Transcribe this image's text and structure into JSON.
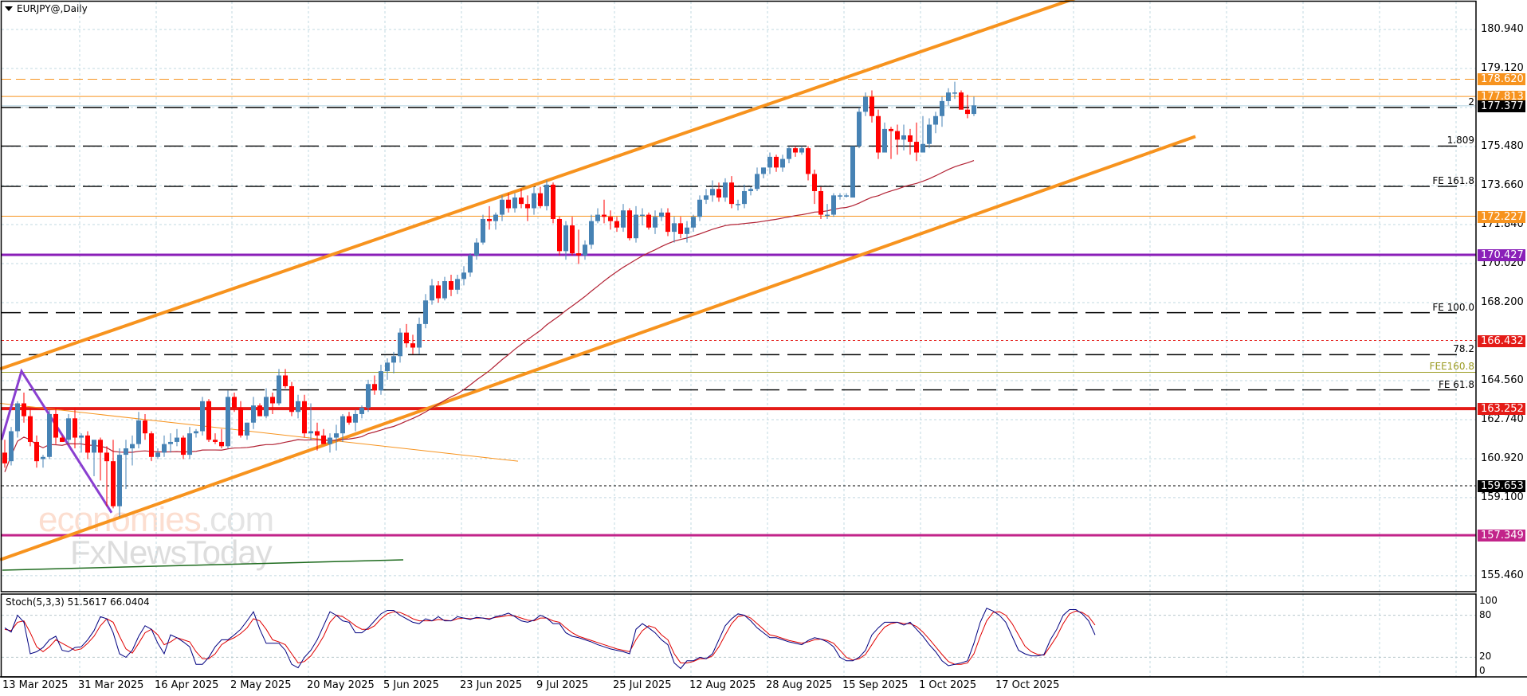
{
  "window": {
    "title": "EURJPY@,Daily"
  },
  "colors": {
    "bull": "#4682b4",
    "bear": "#ff0000",
    "grid": "#c0d8e0",
    "channel": "#f7931e",
    "level_orange": "#f7931e",
    "level_purple": "#8a1fb8",
    "level_red": "#e41b17",
    "level_magenta": "#c2248a",
    "level_black": "#000000",
    "ma": "#b22234",
    "stoch_main": "#000080",
    "stoch_signal": "#e00000"
  },
  "price_axis": {
    "ticks": [
      "180.940",
      "179.120",
      "177.300",
      "175.480",
      "173.660",
      "171.840",
      "170.020",
      "168.200",
      "164.560",
      "162.740",
      "160.920",
      "159.100",
      "155.460"
    ],
    "tick_values": [
      180.94,
      179.12,
      177.3,
      175.48,
      173.66,
      171.84,
      170.02,
      168.2,
      164.56,
      162.74,
      160.92,
      159.1,
      155.46
    ]
  },
  "price_tags": [
    {
      "label": "178.620",
      "value": 178.62,
      "color": "#f7931e"
    },
    {
      "label": "177.813",
      "value": 177.813,
      "color": "#f7931e"
    },
    {
      "label": "177.377",
      "value": 177.377,
      "color": "#000000"
    },
    {
      "label": "172.227",
      "value": 172.227,
      "color": "#f7931e"
    },
    {
      "label": "170.427",
      "value": 170.427,
      "color": "#8a1fb8"
    },
    {
      "label": "166.432",
      "value": 166.432,
      "color": "#e41b17"
    },
    {
      "label": "163.252",
      "value": 163.252,
      "color": "#e41b17"
    },
    {
      "label": "159.653",
      "value": 159.653,
      "color": "#000000"
    },
    {
      "label": "157.349",
      "value": 157.349,
      "color": "#c2248a"
    }
  ],
  "fib_levels": [
    {
      "label": "2",
      "value": 177.3
    },
    {
      "label": "1.809",
      "value": 175.5
    },
    {
      "label": "FE 161.8",
      "value": 173.62
    },
    {
      "label": "FE 100.0",
      "value": 167.73
    },
    {
      "label": "78.2",
      "value": 165.77
    },
    {
      "label": "FE 61.8",
      "value": 164.13
    }
  ],
  "olive_level": {
    "label": "FEE160.8",
    "value": 164.95
  },
  "stoch": {
    "label": "Stoch(5,3,3) 51.5617 66.0404",
    "ticks": [
      "100",
      "80",
      "20",
      "0"
    ]
  },
  "x_axis": {
    "dates": [
      "13 Mar 2025",
      "31 Mar 2025",
      "16 Apr 2025",
      "2 May 2025",
      "20 May 2025",
      "5 Jun 2025",
      "23 Jun 2025",
      "9 Jul 2025",
      "25 Jul 2025",
      "12 Aug 2025",
      "28 Aug 2025",
      "15 Sep 2025",
      "1 Oct 2025",
      "17 Oct 2025"
    ]
  },
  "watermark": {
    "part1": "economies",
    "part2": ".com",
    "line2": "FxNewsToday"
  },
  "chart_data": {
    "type": "candlestick",
    "title": "EURJPY@,Daily",
    "xlabel": "",
    "ylabel": "",
    "ylim": [
      154.8,
      182.3
    ],
    "x_tick_labels": [
      "13 Mar 2025",
      "31 Mar 2025",
      "16 Apr 2025",
      "2 May 2025",
      "20 May 2025",
      "5 Jun 2025",
      "23 Jun 2025",
      "9 Jul 2025",
      "25 Jul 2025",
      "12 Aug 2025",
      "28 Aug 2025",
      "15 Sep 2025",
      "1 Oct 2025",
      "17 Oct 2025"
    ],
    "horizontal_levels": [
      178.62,
      177.813,
      177.377,
      172.227,
      170.427,
      166.432,
      163.252,
      159.653,
      157.349
    ],
    "indicators": [
      "Stoch(5,3,3) main 51.5617",
      "signal 66.0404",
      "Moving average (red)"
    ],
    "ohlc": [
      [
        161.2,
        161.8,
        160.5,
        160.7
      ],
      [
        160.8,
        162.4,
        160.6,
        162.2
      ],
      [
        162.2,
        163.6,
        161.9,
        163.5
      ],
      [
        163.5,
        164.0,
        162.6,
        162.9
      ],
      [
        162.9,
        163.3,
        161.5,
        161.7
      ],
      [
        161.7,
        162.0,
        160.5,
        160.8
      ],
      [
        160.9,
        161.1,
        160.5,
        161.0
      ],
      [
        161.0,
        163.2,
        160.9,
        163.0
      ],
      [
        163.0,
        163.3,
        161.6,
        161.9
      ],
      [
        161.9,
        162.0,
        161.7,
        161.7
      ],
      [
        161.8,
        163.0,
        161.6,
        162.8
      ],
      [
        162.8,
        163.3,
        161.4,
        161.9
      ],
      [
        161.9,
        162.1,
        161.2,
        162.0
      ],
      [
        162.0,
        162.2,
        160.9,
        161.2
      ],
      [
        161.2,
        161.7,
        160.1,
        161.8
      ],
      [
        161.8,
        161.9,
        159.9,
        161.2
      ],
      [
        161.2,
        161.5,
        158.7,
        160.8
      ],
      [
        160.8,
        161.8,
        158.6,
        158.7
      ],
      [
        158.7,
        161.4,
        158.2,
        161.1
      ],
      [
        161.1,
        161.8,
        159.5,
        161.4
      ],
      [
        161.4,
        162.0,
        160.6,
        161.6
      ],
      [
        161.6,
        163.1,
        161.4,
        162.7
      ],
      [
        162.7,
        163.0,
        161.8,
        162.1
      ],
      [
        162.1,
        162.2,
        160.8,
        161.0
      ],
      [
        161.0,
        161.4,
        160.9,
        161.2
      ],
      [
        161.2,
        162.0,
        161.0,
        161.6
      ],
      [
        161.6,
        162.1,
        161.2,
        161.7
      ],
      [
        161.7,
        162.3,
        161.5,
        161.9
      ],
      [
        161.9,
        162.0,
        160.9,
        161.1
      ],
      [
        161.1,
        162.4,
        160.9,
        162.1
      ],
      [
        162.1,
        162.3,
        161.9,
        162.2
      ],
      [
        162.2,
        163.8,
        162.0,
        163.6
      ],
      [
        163.6,
        163.7,
        161.7,
        161.8
      ],
      [
        161.8,
        162.1,
        161.6,
        161.7
      ],
      [
        161.7,
        162.3,
        161.4,
        161.5
      ],
      [
        161.5,
        164.1,
        161.4,
        163.8
      ],
      [
        163.8,
        164.0,
        163.1,
        163.3
      ],
      [
        163.3,
        163.6,
        161.9,
        162.0
      ],
      [
        162.0,
        162.6,
        161.8,
        162.6
      ],
      [
        162.6,
        163.8,
        162.3,
        163.4
      ],
      [
        163.4,
        163.5,
        162.9,
        162.9
      ],
      [
        162.9,
        164.2,
        162.8,
        163.8
      ],
      [
        163.8,
        164.0,
        163.0,
        163.5
      ],
      [
        163.5,
        165.1,
        163.4,
        164.8
      ],
      [
        164.8,
        165.1,
        164.2,
        164.3
      ],
      [
        164.3,
        164.5,
        162.9,
        163.1
      ],
      [
        163.1,
        163.9,
        162.8,
        163.6
      ],
      [
        163.6,
        163.9,
        161.9,
        162.1
      ],
      [
        162.1,
        163.5,
        161.8,
        162.2
      ],
      [
        162.2,
        162.6,
        161.3,
        162.0
      ],
      [
        162.0,
        162.3,
        161.6,
        161.6
      ],
      [
        161.6,
        162.1,
        161.2,
        161.9
      ],
      [
        161.9,
        162.5,
        161.3,
        162.1
      ],
      [
        162.1,
        163.0,
        161.7,
        162.9
      ],
      [
        162.9,
        163.1,
        162.5,
        162.6
      ],
      [
        162.6,
        163.2,
        162.2,
        163.0
      ],
      [
        163.0,
        163.4,
        162.8,
        163.3
      ],
      [
        163.3,
        164.6,
        163.1,
        164.4
      ],
      [
        164.4,
        164.8,
        163.9,
        164.1
      ],
      [
        164.1,
        165.3,
        163.9,
        165.0
      ],
      [
        165.0,
        165.6,
        164.6,
        165.4
      ],
      [
        165.4,
        165.9,
        164.9,
        165.7
      ],
      [
        165.7,
        167.0,
        165.4,
        166.8
      ],
      [
        166.8,
        167.2,
        166.1,
        166.3
      ],
      [
        166.3,
        166.7,
        165.8,
        166.1
      ],
      [
        166.1,
        167.5,
        165.8,
        167.2
      ],
      [
        167.2,
        168.6,
        167.0,
        168.3
      ],
      [
        168.3,
        169.3,
        168.1,
        169.0
      ],
      [
        169.0,
        169.2,
        168.2,
        168.4
      ],
      [
        168.4,
        169.4,
        168.3,
        169.2
      ],
      [
        169.2,
        169.5,
        168.5,
        168.8
      ],
      [
        168.8,
        169.5,
        168.6,
        169.3
      ],
      [
        169.3,
        169.9,
        169.0,
        169.6
      ],
      [
        169.6,
        170.5,
        169.4,
        170.4
      ],
      [
        170.4,
        171.2,
        170.2,
        171.0
      ],
      [
        171.0,
        172.3,
        170.9,
        172.1
      ],
      [
        172.1,
        172.7,
        171.6,
        172.0
      ],
      [
        172.0,
        172.4,
        171.6,
        172.3
      ],
      [
        172.3,
        173.2,
        172.0,
        173.0
      ],
      [
        173.0,
        173.3,
        172.4,
        172.6
      ],
      [
        172.6,
        173.3,
        172.4,
        173.1
      ],
      [
        173.1,
        173.5,
        172.6,
        172.8
      ],
      [
        172.8,
        173.2,
        172.0,
        172.6
      ],
      [
        172.6,
        173.6,
        172.3,
        173.3
      ],
      [
        173.3,
        173.6,
        172.6,
        172.7
      ],
      [
        172.7,
        173.9,
        172.5,
        173.7
      ],
      [
        173.7,
        173.8,
        171.9,
        172.1
      ],
      [
        172.1,
        172.2,
        170.4,
        170.6
      ],
      [
        170.6,
        172.0,
        170.2,
        171.8
      ],
      [
        171.8,
        172.2,
        170.4,
        170.5
      ],
      [
        170.5,
        171.6,
        170.0,
        170.4
      ],
      [
        170.4,
        171.1,
        170.2,
        170.9
      ],
      [
        170.9,
        172.3,
        170.7,
        172.0
      ],
      [
        172.0,
        172.6,
        171.9,
        172.3
      ],
      [
        172.3,
        173.0,
        171.9,
        172.2
      ],
      [
        172.2,
        172.5,
        171.6,
        172.0
      ],
      [
        172.0,
        172.2,
        171.5,
        171.7
      ],
      [
        171.7,
        172.8,
        171.5,
        172.5
      ],
      [
        172.5,
        172.6,
        171.1,
        171.2
      ],
      [
        171.2,
        172.7,
        171.0,
        172.3
      ],
      [
        172.3,
        172.6,
        171.8,
        172.3
      ],
      [
        172.3,
        172.4,
        171.6,
        171.7
      ],
      [
        171.7,
        172.5,
        171.4,
        172.2
      ],
      [
        172.2,
        172.6,
        172.0,
        172.4
      ],
      [
        172.4,
        172.6,
        171.3,
        171.5
      ],
      [
        171.5,
        172.2,
        171.0,
        171.9
      ],
      [
        171.9,
        172.2,
        171.2,
        171.4
      ],
      [
        171.4,
        172.0,
        171.0,
        171.7
      ],
      [
        171.7,
        172.3,
        171.5,
        172.2
      ],
      [
        172.2,
        173.2,
        172.0,
        173.0
      ],
      [
        173.0,
        173.5,
        172.8,
        173.2
      ],
      [
        173.2,
        173.9,
        172.9,
        173.5
      ],
      [
        173.5,
        173.8,
        172.9,
        173.1
      ],
      [
        173.1,
        174.0,
        172.9,
        173.8
      ],
      [
        173.8,
        174.1,
        172.6,
        172.8
      ],
      [
        172.8,
        173.0,
        172.5,
        172.8
      ],
      [
        172.8,
        173.7,
        172.6,
        173.4
      ],
      [
        173.4,
        173.6,
        173.2,
        173.5
      ],
      [
        173.5,
        174.5,
        173.4,
        174.2
      ],
      [
        174.2,
        174.5,
        174.0,
        174.5
      ],
      [
        174.5,
        175.2,
        174.2,
        175.0
      ],
      [
        175.0,
        175.1,
        174.3,
        174.5
      ],
      [
        174.5,
        175.1,
        174.3,
        174.9
      ],
      [
        174.9,
        175.5,
        174.7,
        175.4
      ],
      [
        175.4,
        175.5,
        175.0,
        175.2
      ],
      [
        175.2,
        175.5,
        175.1,
        175.4
      ],
      [
        175.4,
        175.5,
        173.9,
        174.2
      ],
      [
        174.2,
        174.4,
        172.8,
        173.4
      ],
      [
        173.4,
        173.6,
        172.1,
        172.3
      ],
      [
        172.3,
        172.8,
        172.1,
        172.3
      ],
      [
        172.3,
        173.3,
        172.2,
        173.2
      ],
      [
        173.2,
        173.3,
        173.0,
        173.2
      ],
      [
        173.2,
        173.3,
        173.1,
        173.2
      ],
      [
        173.1,
        175.5,
        174.6,
        175.5
      ],
      [
        175.5,
        177.3,
        175.4,
        177.1
      ],
      [
        177.1,
        178.0,
        176.9,
        177.8
      ],
      [
        177.8,
        178.1,
        176.6,
        176.9
      ],
      [
        176.9,
        177.2,
        174.9,
        175.2
      ],
      [
        175.2,
        176.6,
        175.6,
        176.3
      ],
      [
        176.3,
        176.4,
        174.9,
        176.2
      ],
      [
        176.2,
        176.5,
        175.1,
        175.8
      ],
      [
        175.8,
        176.5,
        175.3,
        176.0
      ],
      [
        176.0,
        176.3,
        175.1,
        175.7
      ],
      [
        175.7,
        176.6,
        174.8,
        175.2
      ],
      [
        175.2,
        176.9,
        175.3,
        175.6
      ],
      [
        175.6,
        176.8,
        175.4,
        176.5
      ],
      [
        176.5,
        177.1,
        176.1,
        176.9
      ],
      [
        176.9,
        177.8,
        176.4,
        177.6
      ],
      [
        177.6,
        178.2,
        177.4,
        178.0
      ],
      [
        178.0,
        178.5,
        177.7,
        178.0
      ],
      [
        178.0,
        178.1,
        177.2,
        177.2
      ],
      [
        177.2,
        177.9,
        176.8,
        177.0
      ],
      [
        177.0,
        177.8,
        176.9,
        177.4
      ]
    ],
    "stoch_main": [
      62,
      56,
      80,
      70,
      25,
      28,
      34,
      45,
      50,
      30,
      28,
      34,
      35,
      45,
      58,
      78,
      75,
      55,
      25,
      20,
      30,
      50,
      65,
      60,
      40,
      25,
      52,
      48,
      42,
      35,
      10,
      10,
      20,
      35,
      45,
      45,
      52,
      60,
      72,
      85,
      60,
      40,
      40,
      40,
      30,
      10,
      5,
      20,
      30,
      45,
      65,
      85,
      80,
      72,
      70,
      55,
      55,
      62,
      72,
      82,
      87,
      87,
      80,
      75,
      70,
      68,
      75,
      72,
      78,
      72,
      72,
      78,
      76,
      74,
      77,
      76,
      74,
      78,
      80,
      83,
      78,
      72,
      70,
      73,
      80,
      76,
      68,
      68,
      55,
      50,
      48,
      45,
      42,
      38,
      35,
      32,
      30,
      28,
      25,
      60,
      68,
      62,
      55,
      45,
      38,
      12,
      4,
      15,
      15,
      20,
      18,
      25,
      45,
      65,
      75,
      82,
      80,
      72,
      62,
      55,
      48,
      48,
      45,
      42,
      40,
      38,
      44,
      48,
      46,
      42,
      35,
      20,
      15,
      15,
      20,
      30,
      52,
      62,
      70,
      70,
      70,
      66,
      70,
      60,
      50,
      38,
      28,
      15,
      8,
      10,
      12,
      15,
      40,
      70,
      90,
      86,
      80,
      70,
      50,
      30,
      25,
      22,
      22,
      24,
      45,
      60,
      80,
      88,
      88,
      82,
      72,
      52
    ],
    "stoch_signal": [
      60,
      58,
      70,
      72,
      55,
      35,
      28,
      35,
      45,
      40,
      35,
      30,
      32,
      40,
      50,
      65,
      75,
      70,
      50,
      32,
      26,
      40,
      55,
      60,
      52,
      38,
      42,
      48,
      45,
      42,
      28,
      18,
      18,
      25,
      38,
      44,
      48,
      54,
      62,
      75,
      72,
      60,
      45,
      42,
      38,
      25,
      12,
      14,
      22,
      35,
      50,
      70,
      80,
      78,
      72,
      65,
      60,
      60,
      65,
      75,
      82,
      85,
      84,
      80,
      75,
      72,
      72,
      72,
      74,
      73,
      72,
      75,
      76,
      75,
      76,
      76,
      75,
      77,
      78,
      80,
      79,
      76,
      73,
      72,
      76,
      76,
      72,
      70,
      62,
      55,
      50,
      47,
      44,
      41,
      38,
      35,
      32,
      30,
      28,
      45,
      58,
      65,
      62,
      52,
      45,
      25,
      12,
      12,
      14,
      18,
      18,
      22,
      35,
      52,
      68,
      78,
      80,
      76,
      68,
      60,
      52,
      50,
      47,
      44,
      42,
      40,
      42,
      45,
      46,
      44,
      40,
      30,
      20,
      16,
      18,
      24,
      38,
      52,
      63,
      68,
      70,
      68,
      68,
      64,
      56,
      46,
      35,
      24,
      14,
      10,
      10,
      12,
      25,
      50,
      72,
      84,
      85,
      80,
      68,
      52,
      36,
      28,
      24,
      23,
      36,
      50,
      68,
      82,
      86,
      84,
      78,
      66
    ]
  }
}
